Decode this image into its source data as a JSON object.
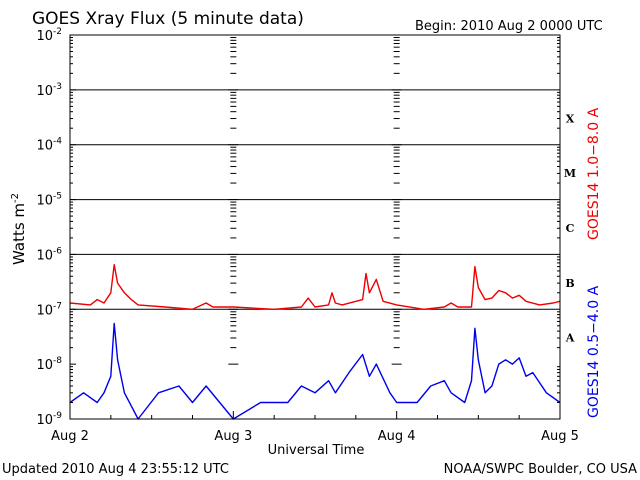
{
  "header": {
    "title": "GOES Xray Flux (5 minute data)",
    "begin": "Begin:  2010 Aug 2 0000 UTC"
  },
  "footer": {
    "updated": "Updated 2010 Aug  4 23:55:12 UTC",
    "credit": "NOAA/SWPC Boulder, CO USA"
  },
  "colors": {
    "long": "#ee0000",
    "short": "#0000ee",
    "axis": "#000000"
  },
  "chart_data": {
    "type": "line",
    "title": "GOES Xray Flux (5 minute data)",
    "xlabel": "Universal Time",
    "ylabel": "Watts m",
    "ylabel_sup": "-2",
    "yscale": "log",
    "ylim": [
      1e-09,
      0.01
    ],
    "xlim": [
      "2010-08-02 00:00",
      "2010-08-05 00:00"
    ],
    "x_ticks": [
      "Aug 2",
      "Aug 3",
      "Aug 4",
      "Aug 5"
    ],
    "y_ticks": [
      {
        "base": "10",
        "exp": "-9"
      },
      {
        "base": "10",
        "exp": "-8"
      },
      {
        "base": "10",
        "exp": "-7"
      },
      {
        "base": "10",
        "exp": "-6"
      },
      {
        "base": "10",
        "exp": "-5"
      },
      {
        "base": "10",
        "exp": "-4"
      },
      {
        "base": "10",
        "exp": "-3"
      },
      {
        "base": "10",
        "exp": "-2"
      }
    ],
    "flare_classes": [
      {
        "label": "A",
        "lo": 1e-08
      },
      {
        "label": "B",
        "lo": 1e-07
      },
      {
        "label": "C",
        "lo": 1e-06
      },
      {
        "label": "M",
        "lo": 1e-05
      },
      {
        "label": "X",
        "lo": 0.0001
      }
    ],
    "grid": "horizontal lines at each decade from 1e-7 to 1e-3",
    "series": [
      {
        "name": "GOES14 1.0−8.0 A",
        "color": "#ee0000",
        "points": [
          [
            "2010-08-02 00:00",
            1.3e-07
          ],
          [
            "2010-08-02 03:00",
            1.2e-07
          ],
          [
            "2010-08-02 04:00",
            1.5e-07
          ],
          [
            "2010-08-02 05:00",
            1.3e-07
          ],
          [
            "2010-08-02 06:00",
            2e-07
          ],
          [
            "2010-08-02 06:30",
            6.5e-07
          ],
          [
            "2010-08-02 07:00",
            3e-07
          ],
          [
            "2010-08-02 08:00",
            2e-07
          ],
          [
            "2010-08-02 09:00",
            1.5e-07
          ],
          [
            "2010-08-02 10:00",
            1.2e-07
          ],
          [
            "2010-08-02 14:00",
            1.1e-07
          ],
          [
            "2010-08-02 18:00",
            1e-07
          ],
          [
            "2010-08-02 20:00",
            1.3e-07
          ],
          [
            "2010-08-02 21:00",
            1.1e-07
          ],
          [
            "2010-08-03 00:00",
            1.1e-07
          ],
          [
            "2010-08-03 06:00",
            1e-07
          ],
          [
            "2010-08-03 10:00",
            1.1e-07
          ],
          [
            "2010-08-03 11:00",
            1.6e-07
          ],
          [
            "2010-08-03 12:00",
            1.1e-07
          ],
          [
            "2010-08-03 14:00",
            1.2e-07
          ],
          [
            "2010-08-03 14:30",
            2e-07
          ],
          [
            "2010-08-03 15:00",
            1.3e-07
          ],
          [
            "2010-08-03 16:00",
            1.2e-07
          ],
          [
            "2010-08-03 19:00",
            1.5e-07
          ],
          [
            "2010-08-03 19:30",
            4.5e-07
          ],
          [
            "2010-08-03 20:00",
            2e-07
          ],
          [
            "2010-08-03 21:00",
            3.5e-07
          ],
          [
            "2010-08-03 22:00",
            1.4e-07
          ],
          [
            "2010-08-04 00:00",
            1.2e-07
          ],
          [
            "2010-08-04 04:00",
            1e-07
          ],
          [
            "2010-08-04 07:00",
            1.1e-07
          ],
          [
            "2010-08-04 08:00",
            1.3e-07
          ],
          [
            "2010-08-04 09:00",
            1.1e-07
          ],
          [
            "2010-08-04 11:00",
            1.1e-07
          ],
          [
            "2010-08-04 11:30",
            6e-07
          ],
          [
            "2010-08-04 12:00",
            2.5e-07
          ],
          [
            "2010-08-04 13:00",
            1.5e-07
          ],
          [
            "2010-08-04 14:00",
            1.6e-07
          ],
          [
            "2010-08-04 15:00",
            2.2e-07
          ],
          [
            "2010-08-04 16:00",
            2e-07
          ],
          [
            "2010-08-04 17:00",
            1.6e-07
          ],
          [
            "2010-08-04 18:00",
            1.8e-07
          ],
          [
            "2010-08-04 19:00",
            1.4e-07
          ],
          [
            "2010-08-04 21:00",
            1.2e-07
          ],
          [
            "2010-08-04 23:00",
            1.3e-07
          ],
          [
            "2010-08-05 00:00",
            1.4e-07
          ]
        ]
      },
      {
        "name": "GOES14 0.5−4.0 A",
        "color": "#0000ee",
        "points": [
          [
            "2010-08-02 00:00",
            2e-09
          ],
          [
            "2010-08-02 02:00",
            3e-09
          ],
          [
            "2010-08-02 04:00",
            2e-09
          ],
          [
            "2010-08-02 05:00",
            3e-09
          ],
          [
            "2010-08-02 06:00",
            6e-09
          ],
          [
            "2010-08-02 06:30",
            5.5e-08
          ],
          [
            "2010-08-02 07:00",
            1.2e-08
          ],
          [
            "2010-08-02 08:00",
            3e-09
          ],
          [
            "2010-08-02 10:00",
            1e-09
          ],
          [
            "2010-08-02 13:00",
            3e-09
          ],
          [
            "2010-08-02 16:00",
            4e-09
          ],
          [
            "2010-08-02 18:00",
            2e-09
          ],
          [
            "2010-08-02 20:00",
            4e-09
          ],
          [
            "2010-08-02 22:00",
            2e-09
          ],
          [
            "2010-08-03 00:00",
            1e-09
          ],
          [
            "2010-08-03 04:00",
            2e-09
          ],
          [
            "2010-08-03 08:00",
            2e-09
          ],
          [
            "2010-08-03 10:00",
            4e-09
          ],
          [
            "2010-08-03 12:00",
            3e-09
          ],
          [
            "2010-08-03 14:00",
            5e-09
          ],
          [
            "2010-08-03 15:00",
            3e-09
          ],
          [
            "2010-08-03 17:00",
            7e-09
          ],
          [
            "2010-08-03 19:00",
            1.5e-08
          ],
          [
            "2010-08-03 20:00",
            6e-09
          ],
          [
            "2010-08-03 21:00",
            1e-08
          ],
          [
            "2010-08-03 23:00",
            3e-09
          ],
          [
            "2010-08-04 00:00",
            2e-09
          ],
          [
            "2010-08-04 03:00",
            2e-09
          ],
          [
            "2010-08-04 05:00",
            4e-09
          ],
          [
            "2010-08-04 07:00",
            5e-09
          ],
          [
            "2010-08-04 08:00",
            3e-09
          ],
          [
            "2010-08-04 10:00",
            2e-09
          ],
          [
            "2010-08-04 11:00",
            5e-09
          ],
          [
            "2010-08-04 11:30",
            4.5e-08
          ],
          [
            "2010-08-04 12:00",
            1.2e-08
          ],
          [
            "2010-08-04 13:00",
            3e-09
          ],
          [
            "2010-08-04 14:00",
            4e-09
          ],
          [
            "2010-08-04 15:00",
            1e-08
          ],
          [
            "2010-08-04 16:00",
            1.2e-08
          ],
          [
            "2010-08-04 17:00",
            1e-08
          ],
          [
            "2010-08-04 18:00",
            1.3e-08
          ],
          [
            "2010-08-04 19:00",
            6e-09
          ],
          [
            "2010-08-04 20:00",
            7e-09
          ],
          [
            "2010-08-04 22:00",
            3e-09
          ],
          [
            "2010-08-05 00:00",
            2e-09
          ]
        ]
      }
    ]
  }
}
